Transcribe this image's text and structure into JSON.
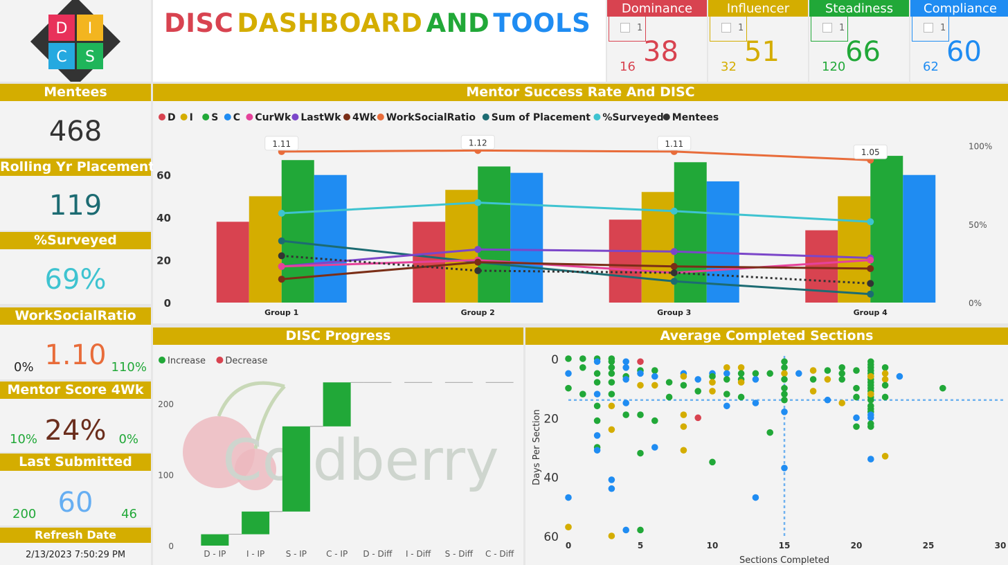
{
  "header": {
    "title_words": [
      {
        "text": "DISC",
        "color": "#d84350"
      },
      {
        "text": "DASHBOARD",
        "color": "#d4ad00"
      },
      {
        "text": "AND",
        "color": "#21a838"
      },
      {
        "text": "TOOLS",
        "color": "#1f8cf2"
      }
    ],
    "logo_letters": [
      "D",
      "I",
      "C",
      "S"
    ]
  },
  "disc_cards": [
    {
      "label": "Dominance",
      "color": "#d84350",
      "check_value": "1",
      "small": "16",
      "big": "38"
    },
    {
      "label": "Influencer",
      "color": "#d4ad00",
      "check_value": "1",
      "small": "32",
      "big": "51"
    },
    {
      "label": "Steadiness",
      "color": "#21a838",
      "check_value": "1",
      "small": "120",
      "big": "66"
    },
    {
      "label": "Compliance",
      "color": "#1f8cf2",
      "check_value": "1",
      "small": "62",
      "big": "60"
    }
  ],
  "kpis": {
    "mentees": {
      "label": "Mentees",
      "value": "468"
    },
    "placements": {
      "label": "Rolling Yr Placements",
      "value": "119"
    },
    "surveyed": {
      "label": "%Surveyed",
      "value": "69%"
    },
    "wsr": {
      "label": "WorkSocialRatio",
      "value": "1.10",
      "min": "0%",
      "max": "110%"
    },
    "mentor": {
      "label": "Mentor Score 4Wk",
      "value": "24%",
      "min": "10%",
      "max": "0%"
    },
    "last": {
      "label": "Last Submitted",
      "value": "60",
      "min": "200",
      "max": "46"
    },
    "refresh": {
      "label": "Refresh Date",
      "value": "2/13/2023 7:50:29 PM"
    }
  },
  "chart_data": [
    {
      "type": "bar",
      "title": "Mentor Success Rate And DISC",
      "categories": [
        "Group 1",
        "Group 2",
        "Group 3",
        "Group 4"
      ],
      "ylim": [
        0,
        70
      ],
      "yticks": [
        0,
        20,
        40,
        60
      ],
      "y2ticks": [
        "0%",
        "50%",
        "100%"
      ],
      "legend": [
        {
          "name": "D",
          "color": "#d84350"
        },
        {
          "name": "I",
          "color": "#d4ad00"
        },
        {
          "name": "S",
          "color": "#21a838"
        },
        {
          "name": "C",
          "color": "#1f8cf2"
        },
        {
          "name": "CurWk",
          "color": "#e5429a"
        },
        {
          "name": "LastWk",
          "color": "#7b46c9"
        },
        {
          "name": "4Wk",
          "color": "#7a2e17"
        },
        {
          "name": "WorkSocialRatio",
          "color": "#e86c3a"
        },
        {
          "name": "Sum of Placement",
          "color": "#1c6b72"
        },
        {
          "name": "%Surveyed",
          "color": "#3ec3d0"
        },
        {
          "name": "Mentees",
          "color": "#333333"
        }
      ],
      "bars": [
        {
          "name": "D",
          "color": "#d84350",
          "values": [
            38,
            38,
            39,
            34
          ]
        },
        {
          "name": "I",
          "color": "#d4ad00",
          "values": [
            50,
            53,
            52,
            50
          ]
        },
        {
          "name": "S",
          "color": "#21a838",
          "values": [
            67,
            64,
            66,
            69
          ]
        },
        {
          "name": "C",
          "color": "#1f8cf2",
          "values": [
            60,
            61,
            57,
            60
          ]
        }
      ],
      "lines": [
        {
          "name": "WorkSocialRatio",
          "color": "#e86c3a",
          "values": [
            71,
            71.5,
            71,
            67
          ],
          "labels": [
            "1.11",
            "1.12",
            "1.11",
            "1.05"
          ]
        },
        {
          "name": "%Surveyed",
          "color": "#3ec3d0",
          "values": [
            42,
            47,
            43,
            38
          ]
        },
        {
          "name": "Sum of Placement",
          "color": "#1c6b72",
          "values": [
            29,
            19,
            10,
            4
          ]
        },
        {
          "name": "LastWk",
          "color": "#7b46c9",
          "values": [
            17,
            25,
            24,
            21
          ]
        },
        {
          "name": "CurWk",
          "color": "#e5429a",
          "values": [
            17,
            20,
            14,
            20
          ]
        },
        {
          "name": "4Wk",
          "color": "#7a2e17",
          "values": [
            11,
            19,
            17,
            16
          ]
        },
        {
          "name": "Mentees",
          "color": "#333333",
          "values": [
            22,
            15,
            14,
            9
          ],
          "dashed": true
        }
      ]
    },
    {
      "type": "bar",
      "title": "DISC Progress",
      "legend": [
        {
          "name": "Increase",
          "color": "#21a838"
        },
        {
          "name": "Decrease",
          "color": "#d84350"
        }
      ],
      "categories": [
        "D - IP",
        "I - IP",
        "S - IP",
        "C - IP",
        "D - Diff",
        "I - Diff",
        "S - Diff",
        "C - Diff"
      ],
      "waterfall_steps": [
        16,
        32,
        120,
        62,
        0,
        0,
        0,
        0
      ],
      "ylim": [
        0,
        240
      ],
      "yticks": [
        0,
        100,
        200
      ],
      "watermark": "Coldberry"
    },
    {
      "type": "scatter",
      "title": "Average Completed Sections",
      "xlabel": "Sections Completed",
      "ylabel": "Days Per Section",
      "xlim": [
        0,
        30
      ],
      "ylim": [
        0,
        60
      ],
      "xticks": [
        0,
        5,
        10,
        15,
        20,
        25,
        30
      ],
      "yticks": [
        0,
        20,
        40,
        60
      ],
      "ref_x": 15,
      "ref_y": 14,
      "colors": {
        "D": "#d84350",
        "I": "#d4ad00",
        "S": "#21a838",
        "C": "#1f8cf2"
      },
      "points": [
        [
          0,
          0,
          "S"
        ],
        [
          0,
          5,
          "C"
        ],
        [
          0,
          10,
          "S"
        ],
        [
          0,
          57,
          "I"
        ],
        [
          0,
          47,
          "C"
        ],
        [
          1,
          0,
          "S"
        ],
        [
          1,
          3,
          "S"
        ],
        [
          1,
          12,
          "S"
        ],
        [
          2,
          0,
          "S"
        ],
        [
          2,
          1,
          "C"
        ],
        [
          2,
          5,
          "S"
        ],
        [
          2,
          8,
          "S"
        ],
        [
          2,
          12,
          "C"
        ],
        [
          2,
          16,
          "S"
        ],
        [
          2,
          21,
          "S"
        ],
        [
          2,
          26,
          "C"
        ],
        [
          2,
          30,
          "S"
        ],
        [
          2,
          31,
          "C"
        ],
        [
          3,
          0,
          "S"
        ],
        [
          3,
          1,
          "S"
        ],
        [
          3,
          3,
          "S"
        ],
        [
          3,
          5,
          "S"
        ],
        [
          3,
          8,
          "S"
        ],
        [
          3,
          12,
          "S"
        ],
        [
          3,
          16,
          "I"
        ],
        [
          3,
          24,
          "I"
        ],
        [
          3,
          41,
          "C"
        ],
        [
          3,
          44,
          "C"
        ],
        [
          3,
          60,
          "I"
        ],
        [
          4,
          1,
          "C"
        ],
        [
          4,
          3,
          "C"
        ],
        [
          4,
          6,
          "S"
        ],
        [
          4,
          7,
          "C"
        ],
        [
          4,
          15,
          "C"
        ],
        [
          4,
          19,
          "S"
        ],
        [
          4,
          58,
          "C"
        ],
        [
          5,
          1,
          "D"
        ],
        [
          5,
          4,
          "S"
        ],
        [
          5,
          5,
          "C"
        ],
        [
          5,
          9,
          "I"
        ],
        [
          5,
          19,
          "S"
        ],
        [
          5,
          32,
          "S"
        ],
        [
          5,
          58,
          "S"
        ],
        [
          6,
          4,
          "S"
        ],
        [
          6,
          6,
          "C"
        ],
        [
          6,
          9,
          "I"
        ],
        [
          6,
          21,
          "S"
        ],
        [
          6,
          30,
          "C"
        ],
        [
          7,
          8,
          "S"
        ],
        [
          7,
          13,
          "S"
        ],
        [
          8,
          5,
          "C"
        ],
        [
          8,
          6,
          "I"
        ],
        [
          8,
          9,
          "S"
        ],
        [
          8,
          19,
          "I"
        ],
        [
          8,
          23,
          "I"
        ],
        [
          8,
          31,
          "I"
        ],
        [
          9,
          7,
          "C"
        ],
        [
          9,
          11,
          "S"
        ],
        [
          9,
          20,
          "D"
        ],
        [
          10,
          5,
          "C"
        ],
        [
          10,
          6,
          "S"
        ],
        [
          10,
          8,
          "I"
        ],
        [
          10,
          11,
          "I"
        ],
        [
          10,
          35,
          "S"
        ],
        [
          11,
          3,
          "I"
        ],
        [
          11,
          5,
          "C"
        ],
        [
          11,
          7,
          "S"
        ],
        [
          11,
          12,
          "S"
        ],
        [
          11,
          16,
          "C"
        ],
        [
          12,
          3,
          "I"
        ],
        [
          12,
          5,
          "S"
        ],
        [
          12,
          7,
          "S"
        ],
        [
          12,
          8,
          "I"
        ],
        [
          12,
          13,
          "S"
        ],
        [
          13,
          5,
          "S"
        ],
        [
          13,
          7,
          "C"
        ],
        [
          13,
          15,
          "C"
        ],
        [
          13,
          47,
          "C"
        ],
        [
          14,
          5,
          "S"
        ],
        [
          14,
          25,
          "S"
        ],
        [
          15,
          1,
          "S"
        ],
        [
          15,
          3,
          "S"
        ],
        [
          15,
          5,
          "I"
        ],
        [
          15,
          7,
          "S"
        ],
        [
          15,
          10,
          "S"
        ],
        [
          15,
          12,
          "S"
        ],
        [
          15,
          14,
          "S"
        ],
        [
          15,
          18,
          "C"
        ],
        [
          15,
          37,
          "C"
        ],
        [
          16,
          5,
          "C"
        ],
        [
          17,
          4,
          "I"
        ],
        [
          17,
          7,
          "S"
        ],
        [
          17,
          11,
          "I"
        ],
        [
          18,
          4,
          "S"
        ],
        [
          18,
          7,
          "I"
        ],
        [
          18,
          14,
          "C"
        ],
        [
          19,
          3,
          "S"
        ],
        [
          19,
          5,
          "S"
        ],
        [
          19,
          7,
          "S"
        ],
        [
          19,
          15,
          "I"
        ],
        [
          20,
          4,
          "S"
        ],
        [
          20,
          10,
          "S"
        ],
        [
          20,
          13,
          "S"
        ],
        [
          20,
          20,
          "C"
        ],
        [
          20,
          23,
          "S"
        ],
        [
          21,
          1,
          "S"
        ],
        [
          21,
          2,
          "S"
        ],
        [
          21,
          3,
          "S"
        ],
        [
          21,
          4,
          "S"
        ],
        [
          21,
          5,
          "S"
        ],
        [
          21,
          6,
          "S"
        ],
        [
          21,
          7,
          "S"
        ],
        [
          21,
          8,
          "S"
        ],
        [
          21,
          9,
          "S"
        ],
        [
          21,
          10,
          "S"
        ],
        [
          21,
          11,
          "S"
        ],
        [
          21,
          12,
          "S"
        ],
        [
          21,
          13,
          "S"
        ],
        [
          21,
          14,
          "S"
        ],
        [
          21,
          16,
          "S"
        ],
        [
          21,
          17,
          "S"
        ],
        [
          21,
          18,
          "S"
        ],
        [
          21,
          19,
          "C"
        ],
        [
          21,
          20,
          "C"
        ],
        [
          21,
          22,
          "S"
        ],
        [
          21,
          23,
          "S"
        ],
        [
          21,
          34,
          "C"
        ],
        [
          21,
          12,
          "I"
        ],
        [
          21,
          6,
          "I"
        ],
        [
          22,
          3,
          "S"
        ],
        [
          22,
          5,
          "I"
        ],
        [
          22,
          7,
          "I"
        ],
        [
          22,
          9,
          "S"
        ],
        [
          22,
          13,
          "S"
        ],
        [
          22,
          33,
          "I"
        ],
        [
          23,
          6,
          "C"
        ],
        [
          26,
          10,
          "S"
        ]
      ]
    }
  ]
}
